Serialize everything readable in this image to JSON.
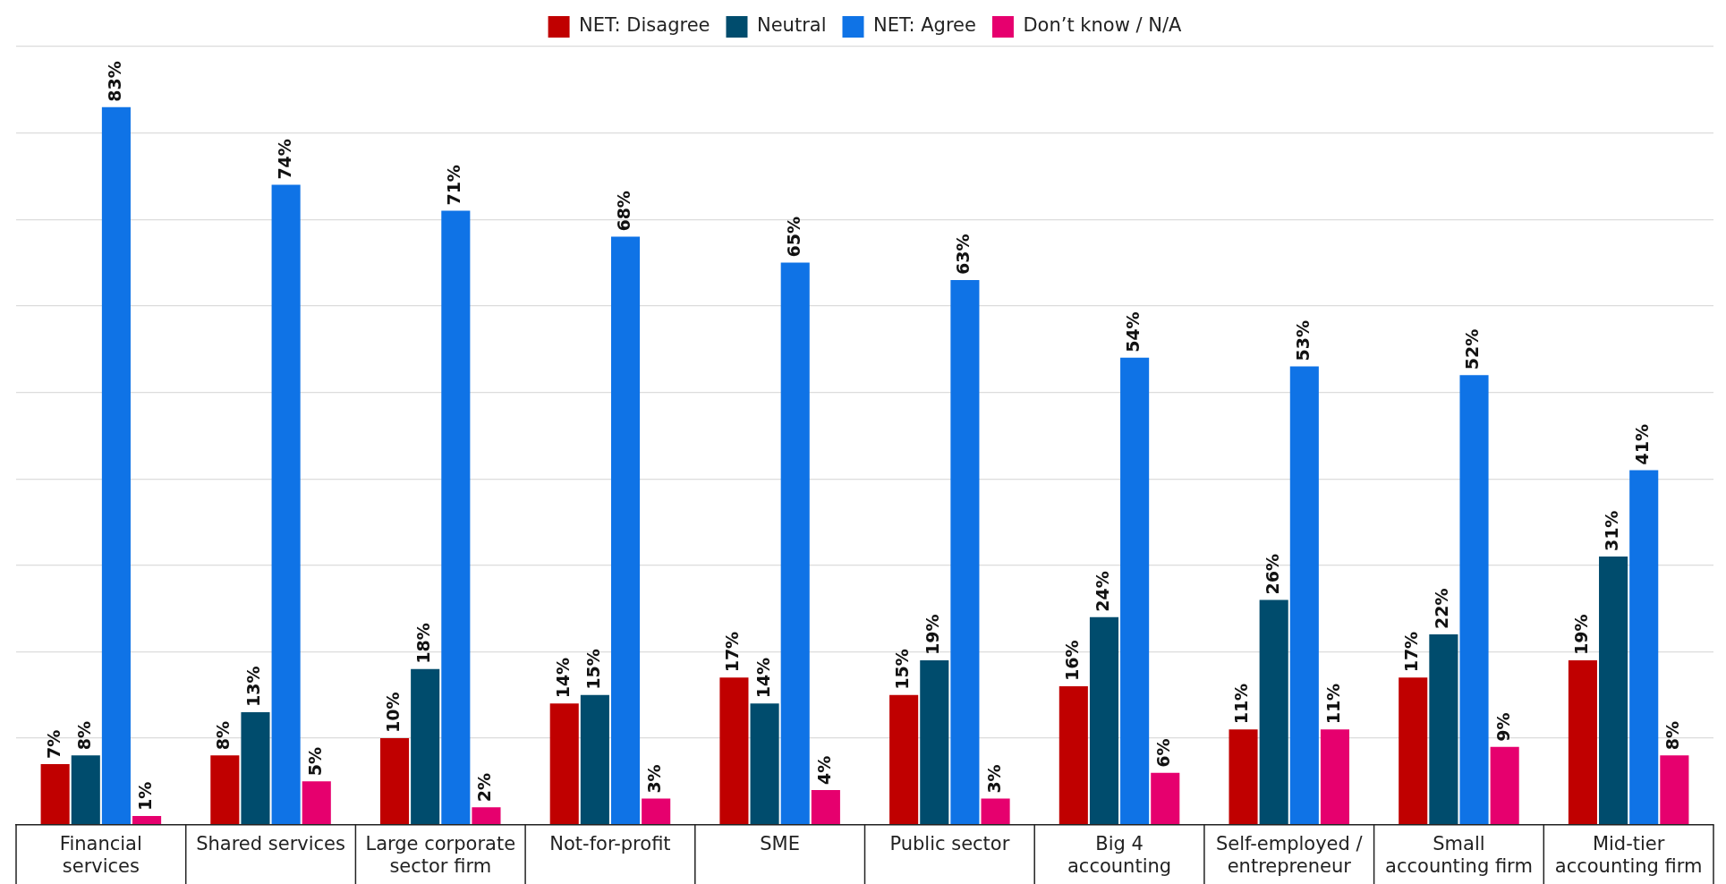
{
  "chart_data": {
    "type": "bar",
    "categories": [
      "Financial services",
      "Shared services",
      "Large corporate sector firm",
      "Not-for-profit",
      "SME",
      "Public sector",
      "Big 4 accounting",
      "Self-employed / entrepreneur",
      "Small accounting firm",
      "Mid-tier accounting firm"
    ],
    "series": [
      {
        "name": "NET: Disagree",
        "color": "#c00000",
        "values": [
          7,
          8,
          10,
          14,
          17,
          15,
          16,
          11,
          17,
          19
        ],
        "value_labels": [
          "7%",
          "8%",
          "10%",
          "14%",
          "17%",
          "15%",
          "16%",
          "11%",
          "17%",
          "19%"
        ]
      },
      {
        "name": "Neutral",
        "color": "#004c6d",
        "values": [
          8,
          13,
          18,
          15,
          14,
          19,
          24,
          26,
          22,
          31
        ],
        "value_labels": [
          "8%",
          "13%",
          "18%",
          "15%",
          "14%",
          "19%",
          "24%",
          "26%",
          "22%",
          "31%"
        ]
      },
      {
        "name": "NET: Agree",
        "color": "#0f73e6",
        "values": [
          83,
          74,
          71,
          68,
          65,
          63,
          54,
          53,
          52,
          41
        ],
        "value_labels": [
          "83%",
          "74%",
          "71%",
          "68%",
          "65%",
          "63%",
          "54%",
          "53%",
          "52%",
          "41%"
        ]
      },
      {
        "name": "Don’t know / N/A",
        "color": "#e6006e",
        "values": [
          1,
          5,
          2,
          3,
          4,
          3,
          6,
          11,
          9,
          8
        ],
        "value_labels": [
          "1%",
          "5%",
          "2%",
          "3%",
          "4%",
          "3%",
          "6%",
          "11%",
          "9%",
          "8%"
        ]
      }
    ],
    "ylim": [
      0,
      90
    ],
    "yticks": [
      {
        "value": 0,
        "label": null
      },
      {
        "value": 10,
        "label": null
      },
      {
        "value": 20,
        "label": null
      },
      {
        "value": 30,
        "label": null
      },
      {
        "value": 40,
        "label": null
      },
      {
        "value": 50,
        "label": null
      },
      {
        "value": 60,
        "label": null
      },
      {
        "value": 70,
        "label": null
      },
      {
        "value": 80,
        "label": null
      },
      {
        "value": 90,
        "label": null
      }
    ],
    "grid": "y",
    "legend": "top",
    "tick_labels": "x"
  }
}
